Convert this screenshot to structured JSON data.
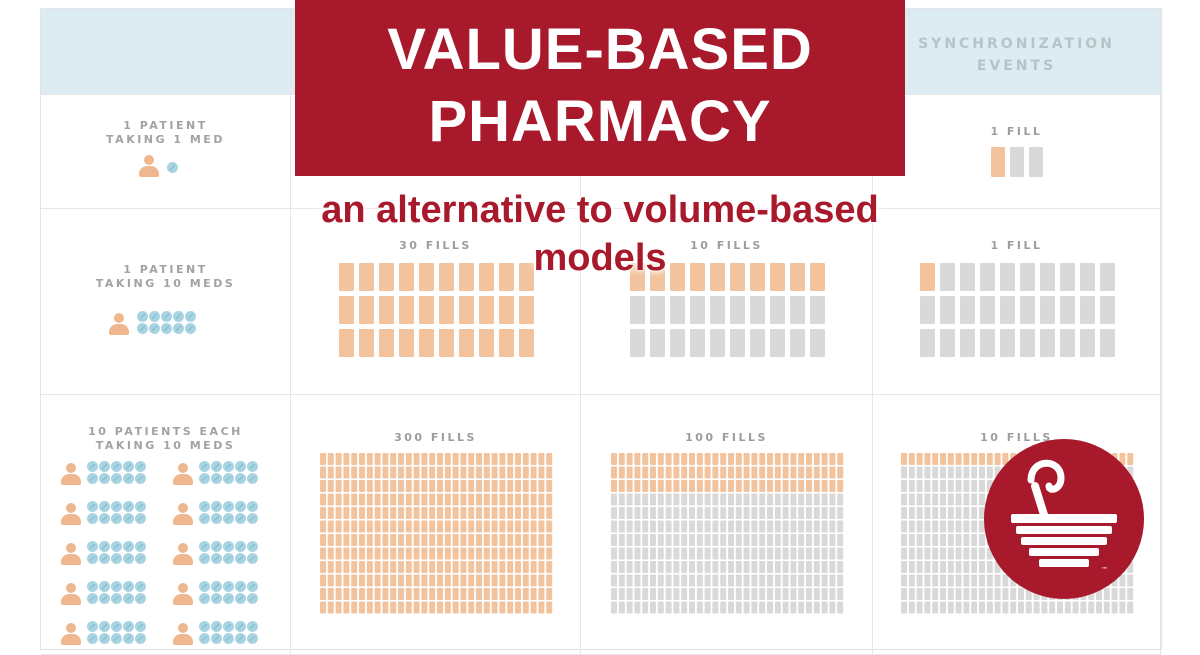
{
  "banner": {
    "title_line1": "VALUE-BASED",
    "title_line2": "PHARMACY",
    "subtitle_line1": "an alternative to volume-based",
    "subtitle_line2": "models"
  },
  "table": {
    "header_sync": [
      "SYNCHRONIZATION",
      "EVENTS"
    ],
    "rows": [
      {
        "label": [
          "1 PATIENT",
          "TAKING 1 MED"
        ],
        "sync_fills": "1 FILL",
        "sync_highlight": 1,
        "sync_total": 3
      },
      {
        "label": [
          "1 PATIENT",
          "TAKING 10 MEDS"
        ],
        "fills_a": "30 FILLS",
        "fills_b": "10 FILLS",
        "sync_fills": "1 FILL"
      },
      {
        "label": [
          "10 PATIENTS EACH",
          "TAKING 10 MEDS"
        ],
        "fills_a": "300 FILLS",
        "fills_b": "100 FILLS",
        "sync_fills": "10 FILLS"
      }
    ]
  },
  "colors": {
    "brand": "#a8192b",
    "fill_active": "#f2c39c",
    "fill_inactive": "#d9d9d9",
    "pill": "#a8d4e2",
    "person": "#efb78d"
  },
  "logo": {
    "icon": "mortar-and-pestle-icon",
    "mark": "™"
  }
}
